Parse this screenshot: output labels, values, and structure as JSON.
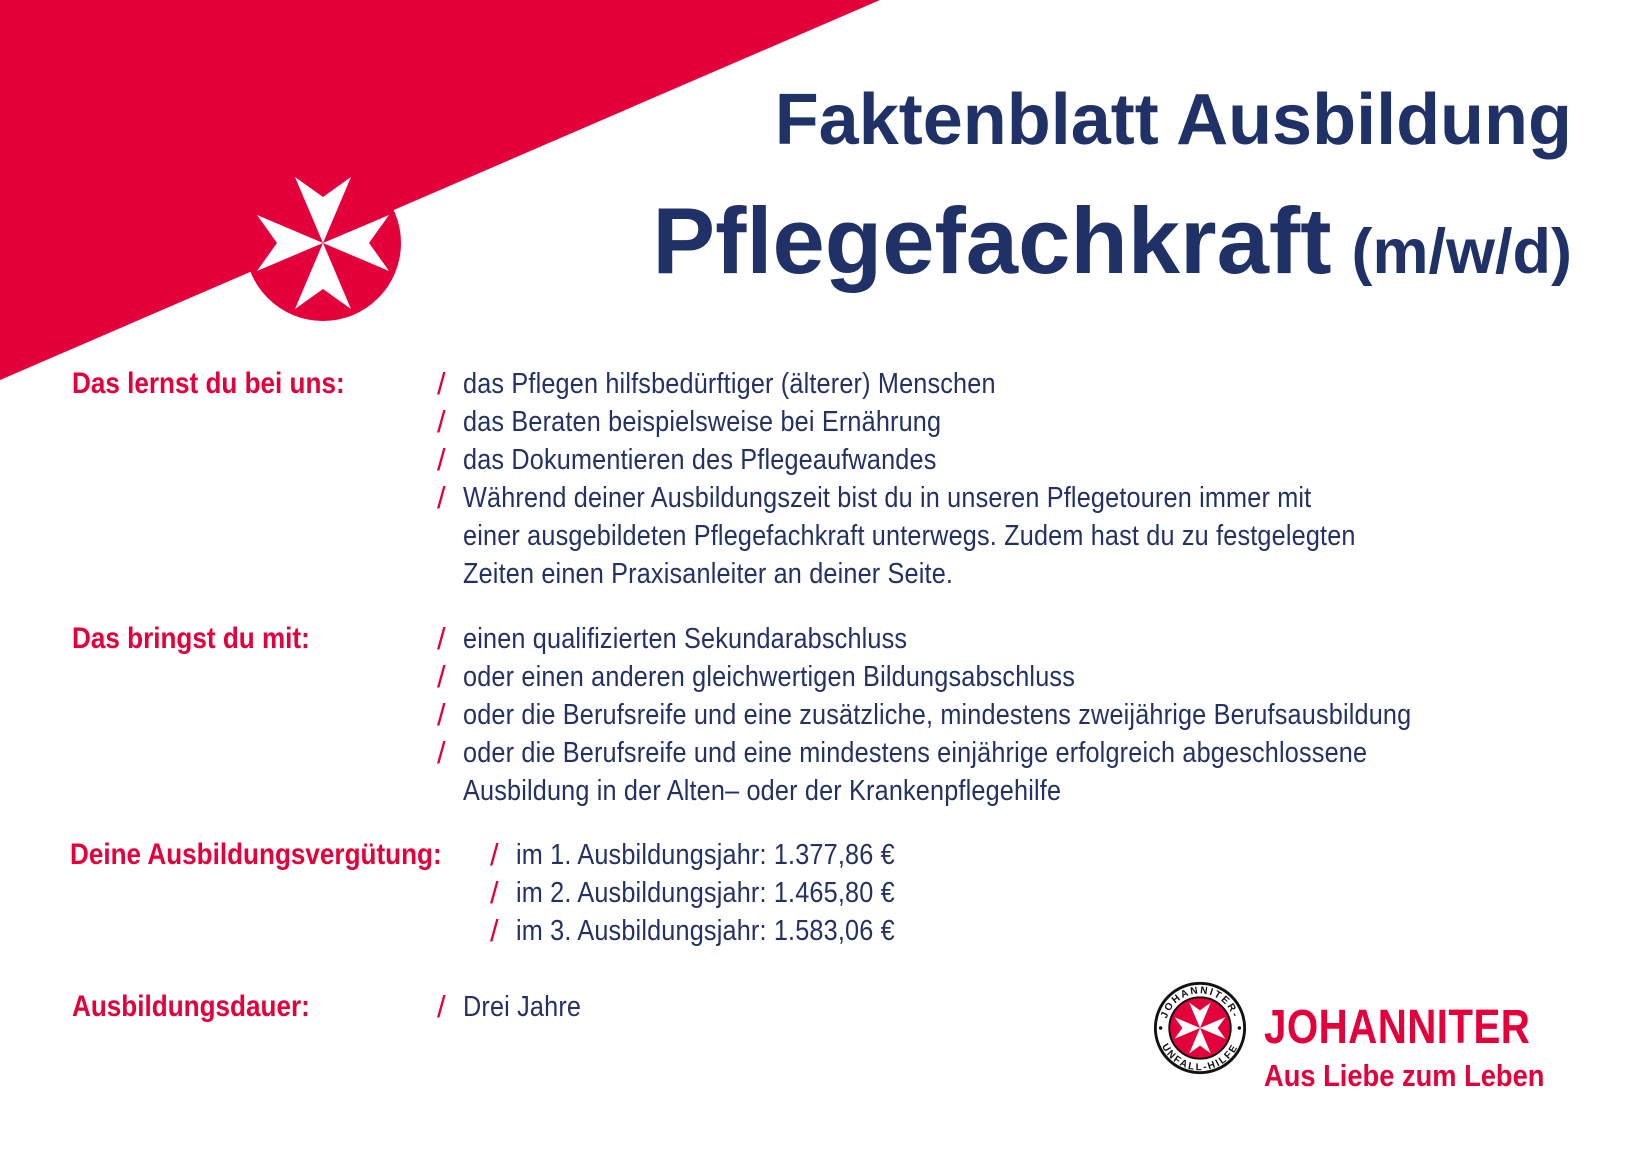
{
  "document": {
    "type_label": "Faktenblatt Ausbildung",
    "title": "Pflegefachkraft",
    "title_suffix": "(m/w/d)"
  },
  "colors": {
    "brand_red": "#E4003A",
    "brand_navy": "#1F3166"
  },
  "sections": [
    {
      "label": "Das lernst du bei uns:",
      "items": [
        [
          "das Pflegen hilfsbedürftiger (älterer) Menschen"
        ],
        [
          "das Beraten beispielsweise bei Ernährung"
        ],
        [
          "das Dokumentieren des Pflegeaufwandes"
        ],
        [
          "Während deiner Ausbildungszeit bist du in unseren Pflegetouren immer mit",
          "einer ausgebildeten Pflegefachkraft unterwegs. Zudem hast du zu festgelegten",
          "Zeiten einen Praxisanleiter an deiner Seite."
        ]
      ]
    },
    {
      "label": "Das bringst du mit:",
      "items": [
        [
          "einen qualifizierten Sekundarabschluss"
        ],
        [
          "oder einen anderen gleichwertigen Bildungsabschluss"
        ],
        [
          "oder die Berufsreife und eine zusätzliche, mindestens zweijährige Berufsausbildung"
        ],
        [
          "oder die Berufsreife und eine mindestens einjährige erfolgreich abgeschlossene",
          "Ausbildung in der Alten– oder der Krankenpflegehilfe"
        ]
      ]
    },
    {
      "label": "Deine Ausbildungsvergütung:",
      "items": [
        [
          "im 1. Ausbildungsjahr: 1.377,86 €"
        ],
        [
          "im 2. Ausbildungsjahr: 1.465,80 €"
        ],
        [
          "im 3. Ausbildungsjahr: 1.583,06 €"
        ]
      ]
    },
    {
      "label": "Ausbildungsdauer:",
      "items": [
        [
          "Drei Jahre"
        ]
      ]
    }
  ],
  "logo": {
    "seal_top": "JOHANNITER-",
    "seal_bottom": "UNFALL-HILFE",
    "wordmark": "JOHANNITER",
    "claim": "Aus Liebe zum Leben"
  }
}
